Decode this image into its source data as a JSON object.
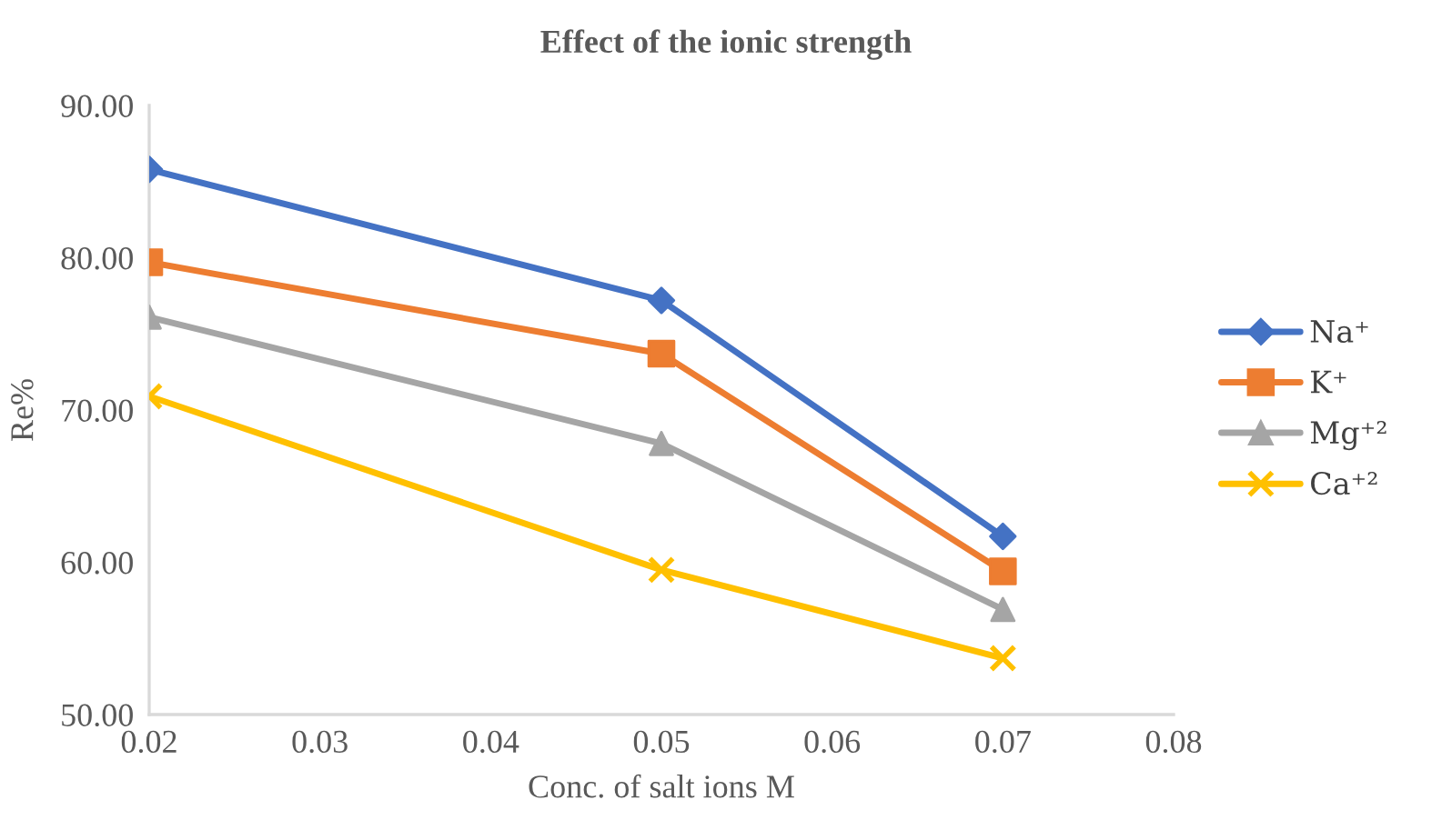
{
  "chart_data": {
    "type": "line",
    "title": "Effect of the ionic strength",
    "xlabel": "Conc. of salt ions M",
    "ylabel": "Re%",
    "x": [
      0.02,
      0.05,
      0.07
    ],
    "series": [
      {
        "name": "Na⁺",
        "color": "#4472c4",
        "marker": "diamond",
        "values": [
          85.8,
          77.2,
          61.7
        ]
      },
      {
        "name": "K⁺",
        "color": "#ed7d31",
        "marker": "square",
        "values": [
          79.7,
          73.7,
          59.4
        ]
      },
      {
        "name": "Mg⁺²",
        "color": "#a5a5a5",
        "marker": "triangle",
        "values": [
          76.1,
          67.8,
          56.9
        ]
      },
      {
        "name": "Ca⁺²",
        "color": "#ffc000",
        "marker": "cross",
        "values": [
          70.9,
          59.5,
          53.7
        ]
      }
    ],
    "xlim": [
      0.02,
      0.08
    ],
    "xticks": [
      {
        "value": 0.02,
        "label": "0.02"
      },
      {
        "value": 0.03,
        "label": "0.03"
      },
      {
        "value": 0.04,
        "label": "0.04"
      },
      {
        "value": 0.05,
        "label": "0.05"
      },
      {
        "value": 0.06,
        "label": "0.06"
      },
      {
        "value": 0.07,
        "label": "0.07"
      },
      {
        "value": 0.08,
        "label": "0.08"
      }
    ],
    "ylim": [
      50,
      90
    ],
    "yticks": [
      {
        "value": 50,
        "label": "50.00"
      },
      {
        "value": 60,
        "label": "60.00"
      },
      {
        "value": 70,
        "label": "70.00"
      },
      {
        "value": 80,
        "label": "80.00"
      },
      {
        "value": 90,
        "label": "90.00"
      }
    ],
    "grid": false,
    "legend": "right"
  }
}
